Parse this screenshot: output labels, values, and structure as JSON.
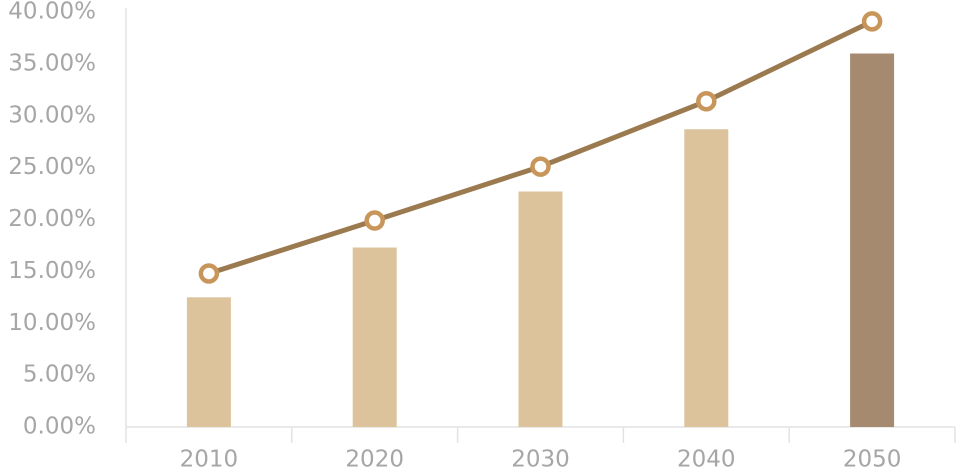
{
  "chart_data": {
    "type": "bar",
    "categories": [
      "2010",
      "2020",
      "2030",
      "2040",
      "2050"
    ],
    "series": [
      {
        "type": "bar",
        "colors": [
          "#dcc39c",
          "#dcc39c",
          "#dcc39c",
          "#dcc39c",
          "#a58a70"
        ],
        "values": [
          12.5,
          17.3,
          22.7,
          28.7,
          36.0
        ]
      },
      {
        "type": "line",
        "color": "#9c7a50",
        "marker_color": "#c8965a",
        "values": [
          14.8,
          19.9,
          25.1,
          31.4,
          39.1
        ]
      }
    ],
    "ylim": [
      0,
      40
    ],
    "yticks": [
      {
        "value": 0,
        "label": "0.00%"
      },
      {
        "value": 5,
        "label": "5.00%"
      },
      {
        "value": 10,
        "label": "10.00%"
      },
      {
        "value": 15,
        "label": "15.00%"
      },
      {
        "value": 20,
        "label": "20.00%"
      },
      {
        "value": 25,
        "label": "25.00%"
      },
      {
        "value": 30,
        "label": "30.00%"
      },
      {
        "value": 35,
        "label": "35.00%"
      },
      {
        "value": 40,
        "label": "40.00%"
      }
    ],
    "grid": false
  }
}
